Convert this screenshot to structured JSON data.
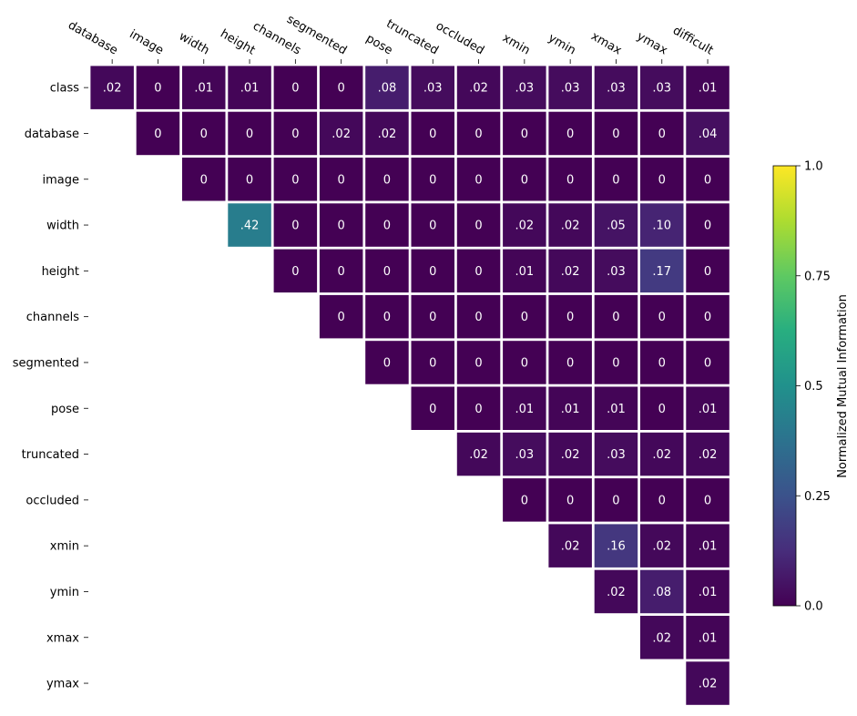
{
  "chart_data": {
    "type": "heatmap",
    "title": "",
    "x_labels": [
      "database",
      "image",
      "width",
      "height",
      "channels",
      "segmented",
      "pose",
      "truncated",
      "occluded",
      "xmin",
      "ymin",
      "xmax",
      "ymax",
      "difficult"
    ],
    "y_labels": [
      "class",
      "database",
      "image",
      "width",
      "height",
      "channels",
      "segmented",
      "pose",
      "truncated",
      "occluded",
      "xmin",
      "ymin",
      "xmax",
      "ymax"
    ],
    "cells": [
      [
        {
          "value": 0.02,
          "label": ".02"
        },
        {
          "value": 0,
          "label": "0"
        },
        {
          "value": 0.01,
          "label": ".01"
        },
        {
          "value": 0.01,
          "label": ".01"
        },
        {
          "value": 0,
          "label": "0"
        },
        {
          "value": 0,
          "label": "0"
        },
        {
          "value": 0.08,
          "label": ".08"
        },
        {
          "value": 0.03,
          "label": ".03"
        },
        {
          "value": 0.02,
          "label": ".02"
        },
        {
          "value": 0.03,
          "label": ".03"
        },
        {
          "value": 0.03,
          "label": ".03"
        },
        {
          "value": 0.03,
          "label": ".03"
        },
        {
          "value": 0.03,
          "label": ".03"
        },
        {
          "value": 0.01,
          "label": ".01"
        }
      ],
      [
        null,
        {
          "value": 0,
          "label": "0"
        },
        {
          "value": 0,
          "label": "0"
        },
        {
          "value": 0,
          "label": "0"
        },
        {
          "value": 0,
          "label": "0"
        },
        {
          "value": 0.02,
          "label": ".02"
        },
        {
          "value": 0.02,
          "label": ".02"
        },
        {
          "value": 0,
          "label": "0"
        },
        {
          "value": 0,
          "label": "0"
        },
        {
          "value": 0,
          "label": "0"
        },
        {
          "value": 0,
          "label": "0"
        },
        {
          "value": 0,
          "label": "0"
        },
        {
          "value": 0,
          "label": "0"
        },
        {
          "value": 0.04,
          "label": ".04"
        }
      ],
      [
        null,
        null,
        {
          "value": 0,
          "label": "0"
        },
        {
          "value": 0,
          "label": "0"
        },
        {
          "value": 0,
          "label": "0"
        },
        {
          "value": 0,
          "label": "0"
        },
        {
          "value": 0,
          "label": "0"
        },
        {
          "value": 0,
          "label": "0"
        },
        {
          "value": 0,
          "label": "0"
        },
        {
          "value": 0,
          "label": "0"
        },
        {
          "value": 0,
          "label": "0"
        },
        {
          "value": 0,
          "label": "0"
        },
        {
          "value": 0,
          "label": "0"
        },
        {
          "value": 0,
          "label": "0"
        }
      ],
      [
        null,
        null,
        null,
        {
          "value": 0.42,
          "label": ".42"
        },
        {
          "value": 0,
          "label": "0"
        },
        {
          "value": 0,
          "label": "0"
        },
        {
          "value": 0,
          "label": "0"
        },
        {
          "value": 0,
          "label": "0"
        },
        {
          "value": 0,
          "label": "0"
        },
        {
          "value": 0.02,
          "label": ".02"
        },
        {
          "value": 0.02,
          "label": ".02"
        },
        {
          "value": 0.05,
          "label": ".05"
        },
        {
          "value": 0.1,
          "label": ".10"
        },
        {
          "value": 0,
          "label": "0"
        }
      ],
      [
        null,
        null,
        null,
        null,
        {
          "value": 0,
          "label": "0"
        },
        {
          "value": 0,
          "label": "0"
        },
        {
          "value": 0,
          "label": "0"
        },
        {
          "value": 0,
          "label": "0"
        },
        {
          "value": 0,
          "label": "0"
        },
        {
          "value": 0.01,
          "label": ".01"
        },
        {
          "value": 0.02,
          "label": ".02"
        },
        {
          "value": 0.03,
          "label": ".03"
        },
        {
          "value": 0.17,
          "label": ".17"
        },
        {
          "value": 0,
          "label": "0"
        }
      ],
      [
        null,
        null,
        null,
        null,
        null,
        {
          "value": 0,
          "label": "0"
        },
        {
          "value": 0,
          "label": "0"
        },
        {
          "value": 0,
          "label": "0"
        },
        {
          "value": 0,
          "label": "0"
        },
        {
          "value": 0,
          "label": "0"
        },
        {
          "value": 0,
          "label": "0"
        },
        {
          "value": 0,
          "label": "0"
        },
        {
          "value": 0,
          "label": "0"
        },
        {
          "value": 0,
          "label": "0"
        }
      ],
      [
        null,
        null,
        null,
        null,
        null,
        null,
        {
          "value": 0,
          "label": "0"
        },
        {
          "value": 0,
          "label": "0"
        },
        {
          "value": 0,
          "label": "0"
        },
        {
          "value": 0,
          "label": "0"
        },
        {
          "value": 0,
          "label": "0"
        },
        {
          "value": 0,
          "label": "0"
        },
        {
          "value": 0,
          "label": "0"
        },
        {
          "value": 0,
          "label": "0"
        }
      ],
      [
        null,
        null,
        null,
        null,
        null,
        null,
        null,
        {
          "value": 0,
          "label": "0"
        },
        {
          "value": 0,
          "label": "0"
        },
        {
          "value": 0.01,
          "label": ".01"
        },
        {
          "value": 0.01,
          "label": ".01"
        },
        {
          "value": 0.01,
          "label": ".01"
        },
        {
          "value": 0,
          "label": "0"
        },
        {
          "value": 0.01,
          "label": ".01"
        }
      ],
      [
        null,
        null,
        null,
        null,
        null,
        null,
        null,
        null,
        {
          "value": 0.02,
          "label": ".02"
        },
        {
          "value": 0.03,
          "label": ".03"
        },
        {
          "value": 0.02,
          "label": ".02"
        },
        {
          "value": 0.03,
          "label": ".03"
        },
        {
          "value": 0.02,
          "label": ".02"
        },
        {
          "value": 0.02,
          "label": ".02"
        }
      ],
      [
        null,
        null,
        null,
        null,
        null,
        null,
        null,
        null,
        null,
        {
          "value": 0,
          "label": "0"
        },
        {
          "value": 0,
          "label": "0"
        },
        {
          "value": 0,
          "label": "0"
        },
        {
          "value": 0,
          "label": "0"
        },
        {
          "value": 0,
          "label": "0"
        }
      ],
      [
        null,
        null,
        null,
        null,
        null,
        null,
        null,
        null,
        null,
        null,
        {
          "value": 0.02,
          "label": ".02"
        },
        {
          "value": 0.16,
          "label": ".16"
        },
        {
          "value": 0.02,
          "label": ".02"
        },
        {
          "value": 0.01,
          "label": ".01"
        }
      ],
      [
        null,
        null,
        null,
        null,
        null,
        null,
        null,
        null,
        null,
        null,
        null,
        {
          "value": 0.02,
          "label": ".02"
        },
        {
          "value": 0.08,
          "label": ".08"
        },
        {
          "value": 0.01,
          "label": ".01"
        }
      ],
      [
        null,
        null,
        null,
        null,
        null,
        null,
        null,
        null,
        null,
        null,
        null,
        null,
        {
          "value": 0.02,
          "label": ".02"
        },
        {
          "value": 0.01,
          "label": ".01"
        }
      ],
      [
        null,
        null,
        null,
        null,
        null,
        null,
        null,
        null,
        null,
        null,
        null,
        null,
        null,
        {
          "value": 0.02,
          "label": ".02"
        }
      ]
    ],
    "colorbar": {
      "label": "Normalized Mutual Information",
      "range": [
        0,
        1
      ],
      "ticks": [
        {
          "value": 0,
          "label": "0.0"
        },
        {
          "value": 0.25,
          "label": "0.25"
        },
        {
          "value": 0.5,
          "label": "0.5"
        },
        {
          "value": 0.75,
          "label": "0.75"
        },
        {
          "value": 1,
          "label": "1.0"
        }
      ],
      "colormap": "viridis"
    },
    "grid": false,
    "legend": "right"
  }
}
